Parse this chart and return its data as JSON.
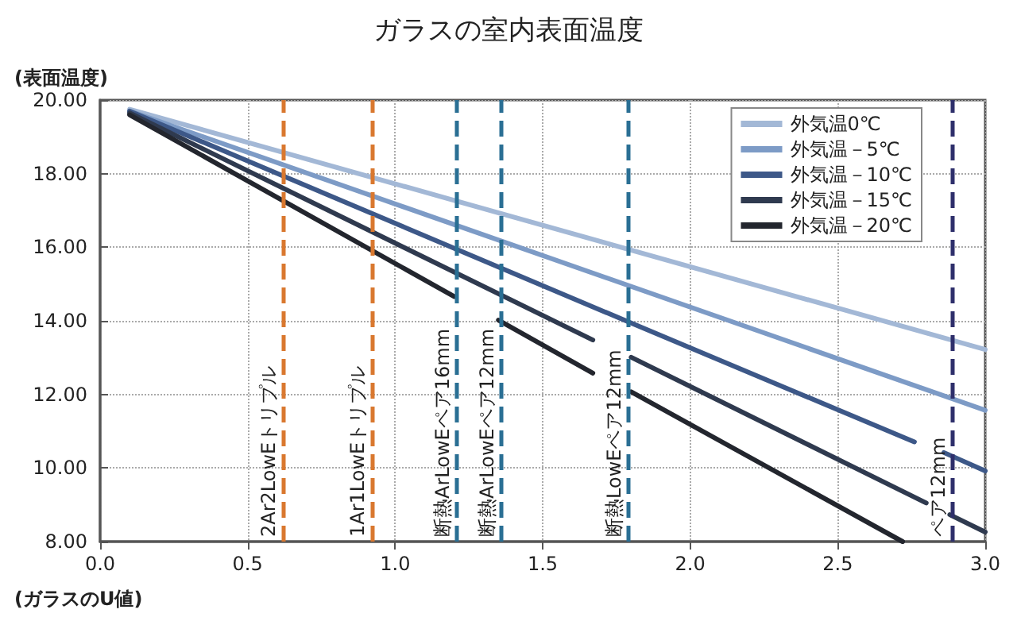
{
  "chart_data": {
    "type": "line",
    "title": "ガラスの室内表面温度",
    "xlabel": "(ガラスのU値)",
    "ylabel": "(表面温度)",
    "xlim": [
      0,
      3
    ],
    "xticks": [
      {
        "value": 0,
        "label": "0.0"
      },
      0.5,
      {
        "value": 1,
        "label": "1.0"
      },
      1.5,
      {
        "value": 2,
        "label": "2.0"
      },
      2.5,
      {
        "value": 3,
        "label": "3.0"
      }
    ],
    "ylim": [
      8,
      20
    ],
    "yticks": [
      {
        "value": 8,
        "label": "8.00"
      },
      {
        "value": 10,
        "label": "10.00"
      },
      {
        "value": 12,
        "label": "12.00"
      },
      {
        "value": 14,
        "label": "14.00"
      },
      {
        "value": 16,
        "label": "16.00"
      },
      {
        "value": 18,
        "label": "18.00"
      },
      {
        "value": 20,
        "label": "20.00"
      }
    ],
    "series": [
      {
        "name": "外気温0℃",
        "color": "#a3b8d6",
        "x": [
          0.1,
          3.0
        ],
        "values": [
          19.75,
          13.22
        ]
      },
      {
        "name": "外気温－5℃",
        "color": "#7d9bc6",
        "x": [
          0.1,
          3.0
        ],
        "values": [
          19.7,
          11.57
        ]
      },
      {
        "name": "外気温－10℃",
        "color": "#3d5888",
        "x": [
          0.1,
          1.8,
          2.76,
          2.81,
          2.86,
          3.0
        ],
        "values": [
          19.7,
          13.94,
          10.71,
          null,
          10.42,
          9.92
        ]
      },
      {
        "name": "外気温－15℃",
        "color": "#2f3a4f",
        "x": [
          0.1,
          1.67,
          1.73,
          1.8,
          2.8,
          2.84,
          2.88,
          3.0
        ],
        "values": [
          19.65,
          13.48,
          null,
          13.01,
          9.05,
          null,
          8.73,
          8.26
        ]
      },
      {
        "name": "外気温－20℃",
        "color": "#23262e",
        "x": [
          0.1,
          1.2,
          1.28,
          1.35,
          1.67,
          1.73,
          1.8,
          2.72
        ],
        "values": [
          19.6,
          14.66,
          null,
          14.02,
          12.58,
          null,
          12.07,
          8.0
        ]
      }
    ],
    "ref_lines": [
      {
        "axis": "x",
        "value": 0.62,
        "label": "2Ar2LowEトリプル",
        "color": "#d9782f",
        "line_style": "dashed"
      },
      {
        "axis": "x",
        "value": 0.92,
        "label": "1Ar1LowEトリプル",
        "color": "#d9782f",
        "line_style": "dashed"
      },
      {
        "axis": "x",
        "value": 1.21,
        "label": "断熱ArLowEペア16mm",
        "color": "#2a6f94",
        "line_style": "dashed"
      },
      {
        "axis": "x",
        "value": 1.36,
        "label": "断熱ArLowEペア12mm",
        "color": "#2a6f94",
        "line_style": "dashed"
      },
      {
        "axis": "x",
        "value": 1.79,
        "label": "断熱LowEペア12mm",
        "color": "#2a6f94",
        "line_style": "dashed"
      },
      {
        "axis": "x",
        "value": 2.89,
        "label": "ペア12mm",
        "color": "#2e2f6b",
        "line_style": "dashed"
      }
    ],
    "grid": true,
    "legend": "top right",
    "marker": "none",
    "line_style": "solid"
  }
}
